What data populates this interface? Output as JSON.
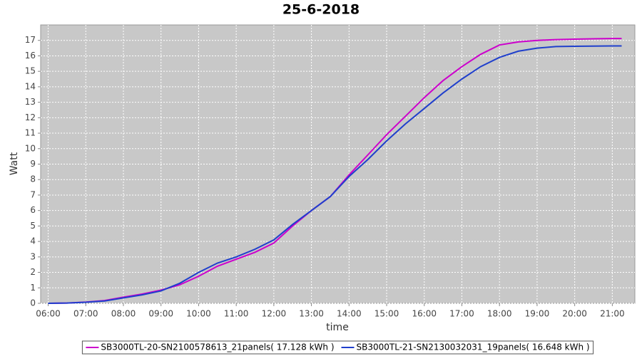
{
  "chart_data": {
    "type": "line",
    "title": "25-6-2018",
    "x_label": "time",
    "y_label": "Watt",
    "x": [
      "06:00",
      "06:30",
      "07:00",
      "07:30",
      "08:00",
      "08:30",
      "09:00",
      "09:30",
      "10:00",
      "10:30",
      "11:00",
      "11:30",
      "12:00",
      "12:30",
      "13:00",
      "13:30",
      "14:00",
      "14:30",
      "15:00",
      "15:30",
      "16:00",
      "16:30",
      "17:00",
      "17:30",
      "18:00",
      "18:30",
      "19:00",
      "19:30",
      "20:00",
      "20:30",
      "21:00",
      "21:15"
    ],
    "series": [
      {
        "name": "SB3000TL-20-SN2100578613_21panels( 17.128 kWh )",
        "color": "#cc00cc",
        "values": [
          0,
          0.02,
          0.08,
          0.18,
          0.4,
          0.6,
          0.85,
          1.2,
          1.75,
          2.4,
          2.85,
          3.3,
          3.9,
          5.0,
          6.0,
          6.9,
          8.3,
          9.6,
          10.9,
          12.1,
          13.3,
          14.4,
          15.3,
          16.1,
          16.7,
          16.9,
          17.0,
          17.05,
          17.08,
          17.1,
          17.12,
          17.12
        ]
      },
      {
        "name": "SB3000TL-21-SN2130032031_19panels( 16.648 kWh )",
        "color": "#1f3fcc",
        "values": [
          0,
          0.02,
          0.07,
          0.15,
          0.35,
          0.55,
          0.8,
          1.3,
          2.0,
          2.6,
          3.0,
          3.5,
          4.1,
          5.1,
          6.0,
          6.9,
          8.2,
          9.3,
          10.5,
          11.6,
          12.6,
          13.6,
          14.5,
          15.3,
          15.9,
          16.3,
          16.5,
          16.6,
          16.62,
          16.63,
          16.64,
          16.64
        ]
      }
    ],
    "xlim": [
      "05:48",
      "21:36"
    ],
    "xticks": [
      "06:00",
      "07:00",
      "08:00",
      "09:00",
      "10:00",
      "11:00",
      "12:00",
      "13:00",
      "14:00",
      "15:00",
      "16:00",
      "17:00",
      "18:00",
      "19:00",
      "20:00",
      "21:00"
    ],
    "ylim": [
      0,
      18
    ],
    "yticks": [
      0,
      1,
      2,
      3,
      4,
      5,
      6,
      7,
      8,
      9,
      10,
      11,
      12,
      13,
      14,
      15,
      16,
      17
    ],
    "grid": true,
    "legend": "bottom"
  }
}
